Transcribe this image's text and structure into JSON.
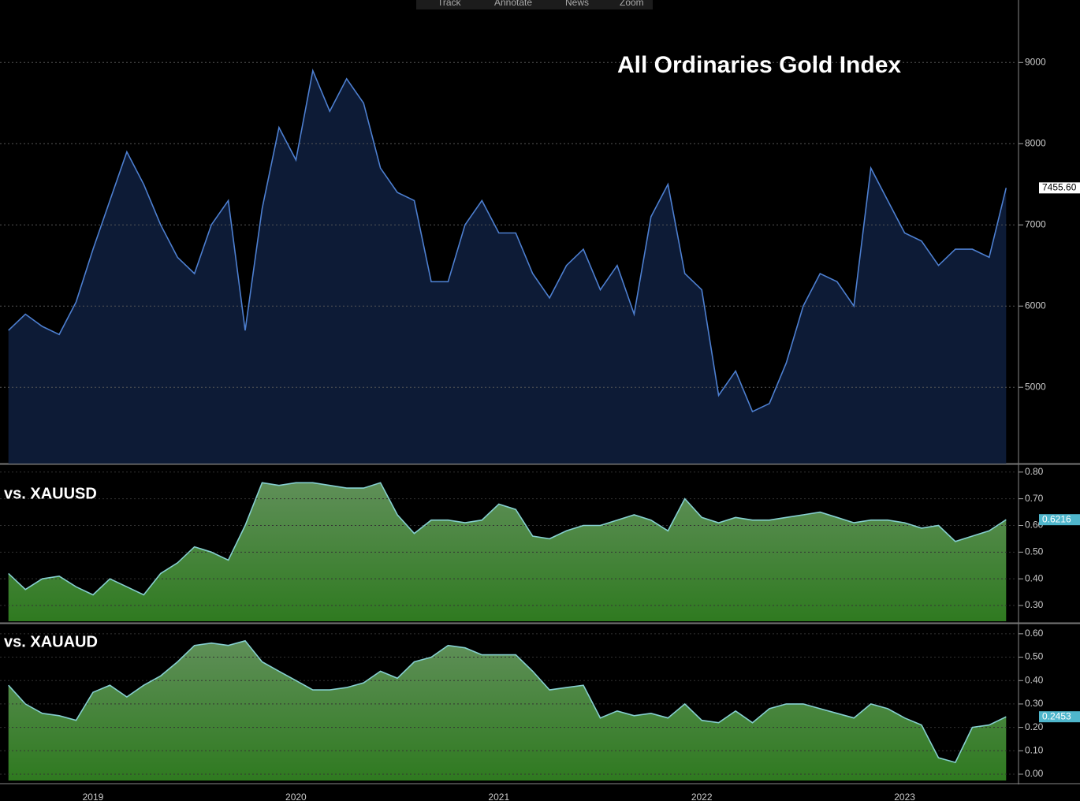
{
  "toolbar": [
    "Track",
    "Annotate",
    "News",
    "Zoom"
  ],
  "chart_data": [
    {
      "type": "area",
      "title": "All Ordinaries Gold Index",
      "color": "#4d7fd0",
      "fill": "#0d1b36",
      "values": [
        5700,
        5900,
        5750,
        5650,
        6050,
        6700,
        7300,
        7900,
        7500,
        7000,
        6600,
        6400,
        7000,
        7300,
        5700,
        7200,
        8200,
        7800,
        8900,
        8400,
        8800,
        8500,
        7700,
        7400,
        7300,
        6300,
        6300,
        7000,
        7300,
        6900,
        6900,
        6400,
        6100,
        6500,
        6700,
        6200,
        6500,
        5900,
        7100,
        7500,
        6400,
        6200,
        4900,
        5200,
        4700,
        4800,
        5300,
        6000,
        6400,
        6300,
        6000,
        7700,
        7300,
        6900,
        6800,
        6500,
        6700,
        6700,
        6600,
        7455.6
      ],
      "value_labels": [
        null,
        null,
        null,
        null,
        null,
        null,
        null,
        null,
        null,
        null,
        null,
        null,
        null,
        null,
        null,
        null,
        null,
        null,
        null,
        null,
        null,
        null,
        null,
        null,
        null,
        null,
        null,
        null,
        null,
        null,
        null,
        null,
        null,
        null,
        null,
        null,
        null,
        null,
        null,
        null,
        null,
        null,
        null,
        null,
        null,
        null,
        null,
        null,
        null,
        null,
        null,
        null,
        null,
        null,
        null,
        null,
        null,
        null,
        null,
        "7455.60"
      ],
      "ylim": [
        4060,
        9770
      ],
      "yticks": [
        5000,
        6000,
        7000,
        8000,
        9000
      ],
      "grid": true
    },
    {
      "type": "area",
      "title": "vs. XAUUSD",
      "color": "#86cfd0",
      "fill": "#3f7f33",
      "values": [
        0.42,
        0.36,
        0.4,
        0.41,
        0.37,
        0.34,
        0.4,
        0.37,
        0.34,
        0.42,
        0.46,
        0.52,
        0.5,
        0.47,
        0.6,
        0.76,
        0.75,
        0.76,
        0.76,
        0.75,
        0.74,
        0.74,
        0.76,
        0.64,
        0.57,
        0.62,
        0.62,
        0.61,
        0.62,
        0.68,
        0.66,
        0.56,
        0.55,
        0.58,
        0.6,
        0.6,
        0.62,
        0.64,
        0.62,
        0.58,
        0.7,
        0.63,
        0.61,
        0.63,
        0.62,
        0.62,
        0.63,
        0.64,
        0.65,
        0.63,
        0.61,
        0.62,
        0.62,
        0.61,
        0.59,
        0.6,
        0.54,
        0.56,
        0.58,
        0.6216
      ],
      "ylim": [
        0.241,
        0.826
      ],
      "yticks": [
        {
          "value": 0.3,
          "label": "0.30"
        },
        {
          "value": 0.4,
          "label": "0.40"
        },
        {
          "value": 0.5,
          "label": "0.50"
        },
        {
          "value": 0.6,
          "label": "0.60"
        },
        {
          "value": 0.7,
          "label": "0.70"
        },
        {
          "value": 0.8,
          "label": "0.80"
        }
      ],
      "grid": true
    },
    {
      "type": "area",
      "title": "vs. XAUAUD",
      "color": "#86cfd0",
      "fill": "#3f7f33",
      "categories": [
        null,
        null,
        null,
        null,
        null,
        "2019",
        null,
        null,
        null,
        null,
        null,
        null,
        null,
        null,
        null,
        null,
        null,
        "2020",
        null,
        null,
        null,
        null,
        null,
        null,
        null,
        null,
        null,
        null,
        null,
        "2021",
        null,
        null,
        null,
        null,
        null,
        null,
        null,
        null,
        null,
        null,
        null,
        "2022",
        null,
        null,
        null,
        null,
        null,
        null,
        null,
        null,
        null,
        null,
        null,
        "2023",
        null,
        null,
        null,
        null,
        null,
        null
      ],
      "values": [
        0.38,
        0.3,
        0.26,
        0.25,
        0.23,
        0.35,
        0.38,
        0.33,
        0.38,
        0.42,
        0.48,
        0.55,
        0.56,
        0.55,
        0.57,
        0.48,
        0.44,
        0.4,
        0.36,
        0.36,
        0.37,
        0.39,
        0.44,
        0.41,
        0.48,
        0.5,
        0.55,
        0.54,
        0.51,
        0.51,
        0.51,
        0.44,
        0.36,
        0.37,
        0.38,
        0.24,
        0.27,
        0.25,
        0.26,
        0.24,
        0.3,
        0.23,
        0.22,
        0.27,
        0.22,
        0.28,
        0.3,
        0.3,
        0.28,
        0.26,
        0.24,
        0.3,
        0.28,
        0.24,
        0.21,
        0.07,
        0.05,
        0.2,
        0.21,
        0.2453
      ],
      "ylim": [
        -0.027,
        0.64
      ],
      "yticks": [
        {
          "value": 0,
          "label": "0.00"
        },
        {
          "value": 0.1,
          "label": "0.10"
        },
        {
          "value": 0.2,
          "label": "0.20"
        },
        {
          "value": 0.3,
          "label": "0.30"
        },
        {
          "value": 0.4,
          "label": "0.40"
        },
        {
          "value": 0.5,
          "label": "0.50"
        },
        {
          "value": 0.6,
          "label": "0.60"
        }
      ],
      "grid": true
    }
  ]
}
